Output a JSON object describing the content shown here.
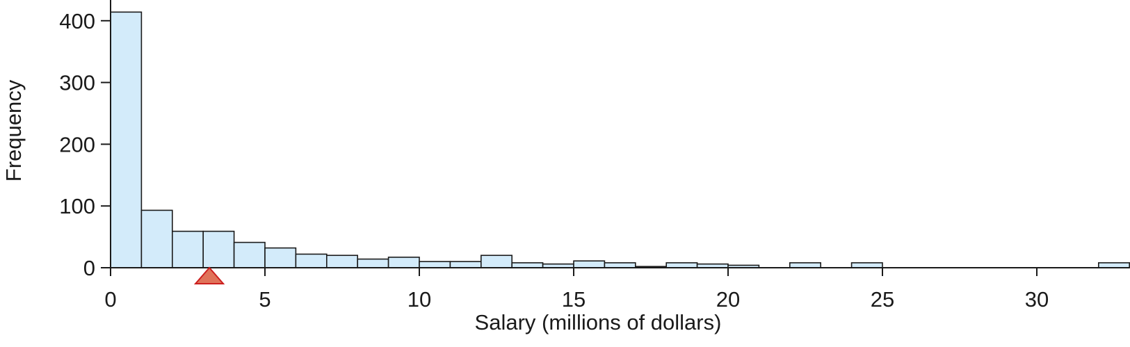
{
  "chart_data": {
    "type": "bar",
    "subtype": "histogram",
    "xlabel": "Salary (millions of dollars)",
    "ylabel": "Frequency",
    "xlim": [
      0,
      33
    ],
    "ylim": [
      0,
      420
    ],
    "xticks": [
      0,
      5,
      10,
      15,
      20,
      25,
      30
    ],
    "yticks": [
      0,
      100,
      200,
      300,
      400
    ],
    "bin_width": 1,
    "bins": [
      {
        "x0": 0,
        "x1": 1,
        "count": 414
      },
      {
        "x0": 1,
        "x1": 2,
        "count": 93
      },
      {
        "x0": 2,
        "x1": 3,
        "count": 59
      },
      {
        "x0": 3,
        "x1": 4,
        "count": 59
      },
      {
        "x0": 4,
        "x1": 5,
        "count": 41
      },
      {
        "x0": 5,
        "x1": 6,
        "count": 32
      },
      {
        "x0": 6,
        "x1": 7,
        "count": 22
      },
      {
        "x0": 7,
        "x1": 8,
        "count": 20
      },
      {
        "x0": 8,
        "x1": 9,
        "count": 14
      },
      {
        "x0": 9,
        "x1": 10,
        "count": 17
      },
      {
        "x0": 10,
        "x1": 11,
        "count": 10
      },
      {
        "x0": 11,
        "x1": 12,
        "count": 10
      },
      {
        "x0": 12,
        "x1": 13,
        "count": 20
      },
      {
        "x0": 13,
        "x1": 14,
        "count": 8
      },
      {
        "x0": 14,
        "x1": 15,
        "count": 6
      },
      {
        "x0": 15,
        "x1": 16,
        "count": 11
      },
      {
        "x0": 16,
        "x1": 17,
        "count": 8
      },
      {
        "x0": 17,
        "x1": 18,
        "count": 2
      },
      {
        "x0": 18,
        "x1": 19,
        "count": 8
      },
      {
        "x0": 19,
        "x1": 20,
        "count": 6
      },
      {
        "x0": 20,
        "x1": 21,
        "count": 4
      },
      {
        "x0": 21,
        "x1": 22,
        "count": 0
      },
      {
        "x0": 22,
        "x1": 23,
        "count": 8
      },
      {
        "x0": 23,
        "x1": 24,
        "count": 0
      },
      {
        "x0": 24,
        "x1": 25,
        "count": 8
      },
      {
        "x0": 25,
        "x1": 26,
        "count": 0
      },
      {
        "x0": 26,
        "x1": 27,
        "count": 0
      },
      {
        "x0": 27,
        "x1": 28,
        "count": 0
      },
      {
        "x0": 28,
        "x1": 29,
        "count": 0
      },
      {
        "x0": 29,
        "x1": 30,
        "count": 0
      },
      {
        "x0": 30,
        "x1": 31,
        "count": 0
      },
      {
        "x0": 31,
        "x1": 32,
        "count": 0
      },
      {
        "x0": 32,
        "x1": 33,
        "count": 8
      }
    ],
    "mean_marker": {
      "x": 3.2,
      "shape": "triangle"
    },
    "colors": {
      "bar_fill": "#d3ebfa",
      "bar_stroke": "#1a1a1a",
      "marker_fill": "#e0735a",
      "marker_stroke": "#cc1f1f",
      "axis": "#1a1a1a"
    },
    "grid": false
  }
}
